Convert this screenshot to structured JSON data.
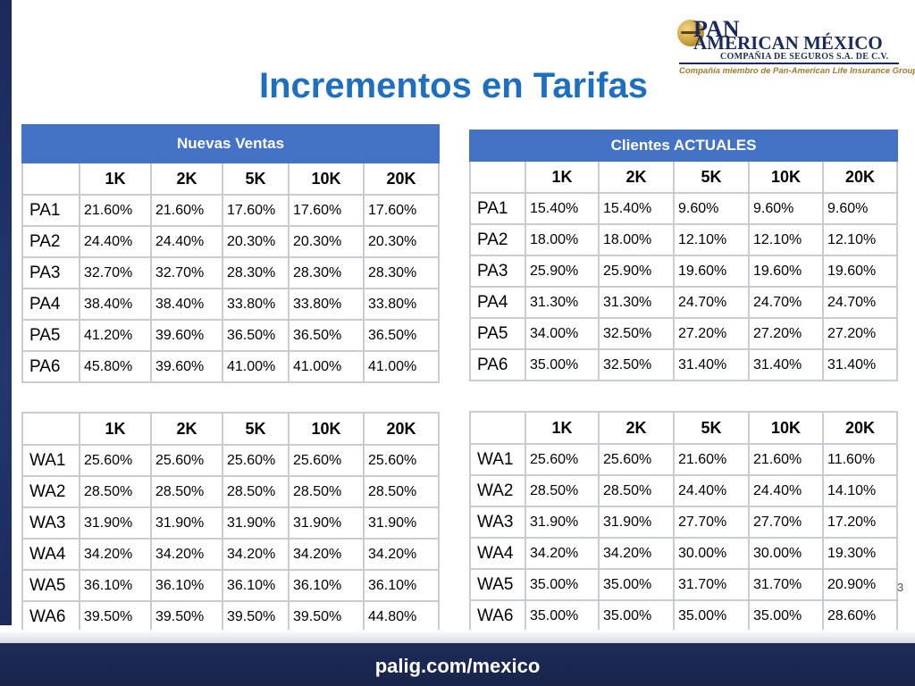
{
  "title": "Incrementos en Tarifas",
  "logo": {
    "line1": "PAN",
    "line2": "AMERICAN MÉXICO",
    "line3": "COMPAÑIA DE SEGUROS S.A. DE C.V.",
    "tagline": "Compañía miembro de Pan-American Life Insurance Group"
  },
  "columns": [
    "1K",
    "2K",
    "5K",
    "10K",
    "20K"
  ],
  "tables": {
    "nuevas_ventas": {
      "banner": "Nuevas Ventas",
      "rows": [
        {
          "label": "PA1",
          "values": [
            "21.60%",
            "21.60%",
            "17.60%",
            "17.60%",
            "17.60%"
          ]
        },
        {
          "label": "PA2",
          "values": [
            "24.40%",
            "24.40%",
            "20.30%",
            "20.30%",
            "20.30%"
          ]
        },
        {
          "label": "PA3",
          "values": [
            "32.70%",
            "32.70%",
            "28.30%",
            "28.30%",
            "28.30%"
          ]
        },
        {
          "label": "PA4",
          "values": [
            "38.40%",
            "38.40%",
            "33.80%",
            "33.80%",
            "33.80%"
          ]
        },
        {
          "label": "PA5",
          "values": [
            "41.20%",
            "39.60%",
            "36.50%",
            "36.50%",
            "36.50%"
          ]
        },
        {
          "label": "PA6",
          "values": [
            "45.80%",
            "39.60%",
            "41.00%",
            "41.00%",
            "41.00%"
          ]
        }
      ]
    },
    "clientes_actuales": {
      "banner": "Clientes ACTUALES",
      "rows": [
        {
          "label": "PA1",
          "values": [
            "15.40%",
            "15.40%",
            "9.60%",
            "9.60%",
            "9.60%"
          ]
        },
        {
          "label": "PA2",
          "values": [
            "18.00%",
            "18.00%",
            "12.10%",
            "12.10%",
            "12.10%"
          ]
        },
        {
          "label": "PA3",
          "values": [
            "25.90%",
            "25.90%",
            "19.60%",
            "19.60%",
            "19.60%"
          ]
        },
        {
          "label": "PA4",
          "values": [
            "31.30%",
            "31.30%",
            "24.70%",
            "24.70%",
            "24.70%"
          ]
        },
        {
          "label": "PA5",
          "values": [
            "34.00%",
            "32.50%",
            "27.20%",
            "27.20%",
            "27.20%"
          ]
        },
        {
          "label": "PA6",
          "values": [
            "35.00%",
            "32.50%",
            "31.40%",
            "31.40%",
            "31.40%"
          ]
        }
      ]
    },
    "wa_nuevas": {
      "rows": [
        {
          "label": "WA1",
          "values": [
            "25.60%",
            "25.60%",
            "25.60%",
            "25.60%",
            "25.60%"
          ]
        },
        {
          "label": "WA2",
          "values": [
            "28.50%",
            "28.50%",
            "28.50%",
            "28.50%",
            "28.50%"
          ]
        },
        {
          "label": "WA3",
          "values": [
            "31.90%",
            "31.90%",
            "31.90%",
            "31.90%",
            "31.90%"
          ]
        },
        {
          "label": "WA4",
          "values": [
            "34.20%",
            "34.20%",
            "34.20%",
            "34.20%",
            "34.20%"
          ]
        },
        {
          "label": "WA5",
          "values": [
            "36.10%",
            "36.10%",
            "36.10%",
            "36.10%",
            "36.10%"
          ]
        },
        {
          "label": "WA6",
          "values": [
            "39.50%",
            "39.50%",
            "39.50%",
            "39.50%",
            "44.80%"
          ]
        }
      ]
    },
    "wa_actuales": {
      "rows": [
        {
          "label": "WA1",
          "values": [
            "25.60%",
            "25.60%",
            "21.60%",
            "21.60%",
            "11.60%"
          ]
        },
        {
          "label": "WA2",
          "values": [
            "28.50%",
            "28.50%",
            "24.40%",
            "24.40%",
            "14.10%"
          ]
        },
        {
          "label": "WA3",
          "values": [
            "31.90%",
            "31.90%",
            "27.70%",
            "27.70%",
            "17.20%"
          ]
        },
        {
          "label": "WA4",
          "values": [
            "34.20%",
            "34.20%",
            "30.00%",
            "30.00%",
            "19.30%"
          ]
        },
        {
          "label": "WA5",
          "values": [
            "35.00%",
            "35.00%",
            "31.70%",
            "31.70%",
            "20.90%"
          ]
        },
        {
          "label": "WA6",
          "values": [
            "35.00%",
            "35.00%",
            "35.00%",
            "35.00%",
            "28.60%"
          ]
        }
      ]
    }
  },
  "slide_number": "3",
  "footer_url": "palig.com/mexico",
  "colors": {
    "title": "#1f6fc0",
    "banner": "#4472c4",
    "footer": "#1d2b57"
  }
}
